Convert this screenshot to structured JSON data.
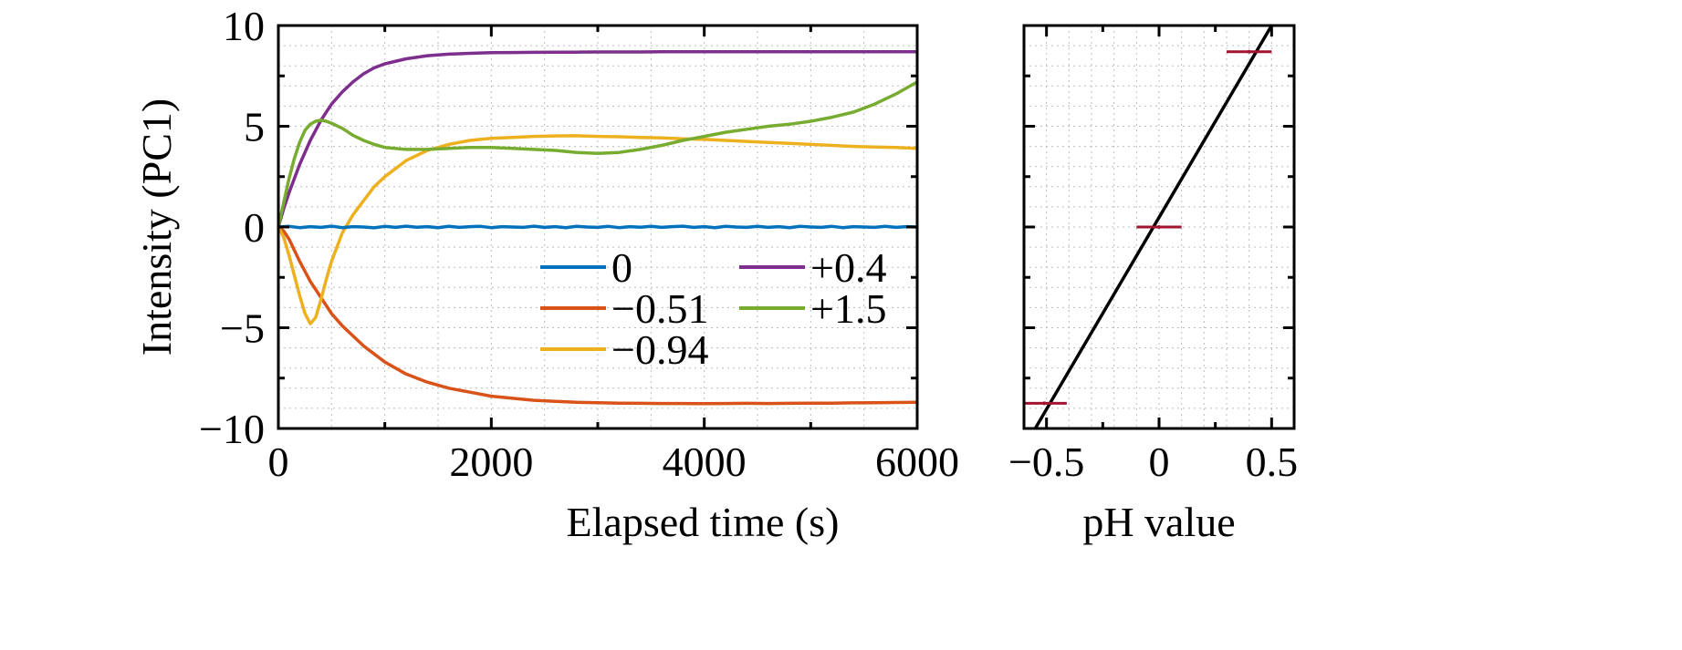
{
  "chart_data": [
    {
      "type": "line",
      "xlabel": "Elapsed time (s)",
      "ylabel": "Intensity (PC1)",
      "xlim": [
        0,
        6000
      ],
      "ylim": [
        -10,
        10
      ],
      "xticks": [
        0,
        2000,
        4000,
        6000
      ],
      "yticks": [
        -10,
        -5,
        0,
        5,
        10
      ],
      "x_tick_labels": [
        "0",
        "2000",
        "4000",
        "6000"
      ],
      "y_tick_labels": [
        "−10",
        "−5",
        "0",
        "5",
        "10"
      ],
      "grid": true,
      "legend_position": "center-right",
      "series": [
        {
          "name": "0",
          "color": "#0072BD",
          "x": [
            0,
            100,
            200,
            300,
            400,
            500,
            600,
            700,
            800,
            900,
            1000,
            1100,
            1200,
            1300,
            1400,
            1500,
            1600,
            1700,
            1800,
            1900,
            2000,
            2100,
            2200,
            2300,
            2400,
            2500,
            2600,
            2700,
            2800,
            2900,
            3000,
            3100,
            3200,
            3300,
            3400,
            3500,
            3600,
            3700,
            3800,
            3900,
            4000,
            4100,
            4200,
            4300,
            4400,
            4500,
            4600,
            4700,
            4800,
            4900,
            5000,
            5100,
            5200,
            5300,
            5400,
            5500,
            5600,
            5700,
            5800,
            5900,
            6000
          ],
          "y": [
            0,
            0.03,
            -0.03,
            0.02,
            -0.02,
            0.04,
            -0.03,
            0.02,
            0.0,
            -0.04,
            0.03,
            -0.02,
            0.04,
            -0.01,
            0.02,
            -0.03,
            0.03,
            -0.02,
            0.02,
            0.03,
            -0.03,
            0.02,
            0.0,
            -0.02,
            0.04,
            -0.02,
            0.02,
            -0.03,
            0.03,
            0.0,
            -0.02,
            0.03,
            -0.03,
            0.02,
            -0.01,
            0.03,
            -0.02,
            0.02,
            0.04,
            -0.02,
            0.02,
            -0.03,
            0.03,
            0.0,
            -0.02,
            0.03,
            -0.02,
            0.02,
            -0.03,
            0.03,
            0.0,
            -0.02,
            0.03,
            -0.03,
            0.02,
            0.0,
            -0.02,
            0.03,
            -0.02,
            0.02,
            0.0
          ]
        },
        {
          "name": "−0.51",
          "color": "#D95319",
          "x": [
            0,
            50,
            100,
            200,
            300,
            400,
            500,
            600,
            800,
            1000,
            1200,
            1400,
            1600,
            1800,
            2000,
            2200,
            2400,
            2600,
            2800,
            3000,
            3200,
            3400,
            3600,
            3800,
            4000,
            4200,
            4400,
            4600,
            4800,
            5000,
            5200,
            5400,
            5600,
            5800,
            6000
          ],
          "y": [
            0,
            -0.2,
            -0.6,
            -1.7,
            -2.7,
            -3.5,
            -4.3,
            -4.9,
            -5.9,
            -6.7,
            -7.3,
            -7.7,
            -8.0,
            -8.2,
            -8.4,
            -8.5,
            -8.6,
            -8.65,
            -8.7,
            -8.72,
            -8.74,
            -8.75,
            -8.76,
            -8.76,
            -8.77,
            -8.76,
            -8.75,
            -8.76,
            -8.75,
            -8.74,
            -8.74,
            -8.73,
            -8.72,
            -8.71,
            -8.7
          ]
        },
        {
          "name": "−0.94",
          "color": "#EDB120",
          "x": [
            0,
            50,
            100,
            150,
            200,
            250,
            300,
            350,
            400,
            450,
            500,
            600,
            700,
            800,
            900,
            1000,
            1200,
            1400,
            1600,
            1800,
            2000,
            2200,
            2400,
            2600,
            2800,
            3000,
            3200,
            3400,
            3600,
            3800,
            4000,
            4200,
            4400,
            4600,
            4800,
            5000,
            5200,
            5400,
            5600,
            5800,
            6000
          ],
          "y": [
            0,
            -0.5,
            -1.4,
            -2.4,
            -3.4,
            -4.3,
            -4.8,
            -4.5,
            -3.6,
            -2.6,
            -1.7,
            -0.3,
            0.6,
            1.3,
            2.0,
            2.5,
            3.3,
            3.8,
            4.1,
            4.3,
            4.4,
            4.45,
            4.5,
            4.52,
            4.53,
            4.5,
            4.48,
            4.45,
            4.42,
            4.38,
            4.35,
            4.3,
            4.25,
            4.2,
            4.15,
            4.1,
            4.05,
            4.0,
            3.97,
            3.95,
            3.9
          ]
        },
        {
          "name": "+0.4",
          "color": "#7E2F8E",
          "x": [
            0,
            50,
            100,
            200,
            300,
            400,
            500,
            600,
            700,
            800,
            900,
            1000,
            1200,
            1400,
            1600,
            1800,
            2000,
            2200,
            2400,
            2600,
            2800,
            3000,
            3200,
            3400,
            3600,
            3800,
            4000,
            4200,
            4400,
            4600,
            4800,
            5000,
            5200,
            5400,
            5600,
            5800,
            6000
          ],
          "y": [
            0,
            0.9,
            1.7,
            3.1,
            4.3,
            5.3,
            6.1,
            6.7,
            7.2,
            7.6,
            7.9,
            8.1,
            8.35,
            8.5,
            8.58,
            8.62,
            8.65,
            8.66,
            8.67,
            8.68,
            8.68,
            8.69,
            8.69,
            8.69,
            8.7,
            8.7,
            8.7,
            8.7,
            8.7,
            8.7,
            8.7,
            8.7,
            8.7,
            8.7,
            8.7,
            8.7,
            8.7
          ]
        },
        {
          "name": "+1.5",
          "color": "#77AC30",
          "x": [
            0,
            50,
            100,
            150,
            200,
            250,
            300,
            350,
            400,
            450,
            500,
            600,
            700,
            800,
            900,
            1000,
            1200,
            1400,
            1600,
            1800,
            2000,
            2200,
            2400,
            2600,
            2800,
            3000,
            3200,
            3400,
            3600,
            3800,
            4000,
            4200,
            4400,
            4600,
            4800,
            5000,
            5200,
            5400,
            5600,
            5800,
            6000
          ],
          "y": [
            0,
            1.2,
            2.4,
            3.4,
            4.2,
            4.8,
            5.1,
            5.25,
            5.3,
            5.25,
            5.15,
            4.9,
            4.55,
            4.3,
            4.1,
            3.95,
            3.85,
            3.85,
            3.9,
            3.95,
            3.95,
            3.9,
            3.85,
            3.8,
            3.7,
            3.65,
            3.7,
            3.85,
            4.05,
            4.3,
            4.5,
            4.7,
            4.85,
            5.0,
            5.1,
            5.25,
            5.45,
            5.7,
            6.1,
            6.6,
            7.2
          ]
        }
      ]
    },
    {
      "type": "scatter",
      "xlabel": "pH value",
      "ylabel": "",
      "xlim": [
        -0.6,
        0.6
      ],
      "ylim": [
        -10,
        10
      ],
      "xticks": [
        -0.5,
        0,
        0.5
      ],
      "yticks": [
        -10,
        -5,
        0,
        5,
        10
      ],
      "x_tick_labels": [
        "−0.5",
        "0",
        "0.5"
      ],
      "grid": true,
      "points": [
        {
          "x": -0.51,
          "y": -8.75,
          "xerr": 0.1,
          "color": "#A2142F"
        },
        {
          "x": 0.0,
          "y": 0.0,
          "xerr": 0.1,
          "color": "#A2142F"
        },
        {
          "x": 0.4,
          "y": 8.7,
          "xerr": 0.1,
          "color": "#A2142F"
        }
      ],
      "fit_line": {
        "x": [
          -0.55,
          0.5
        ],
        "y": [
          -10,
          10
        ],
        "color": "#000000"
      }
    }
  ]
}
